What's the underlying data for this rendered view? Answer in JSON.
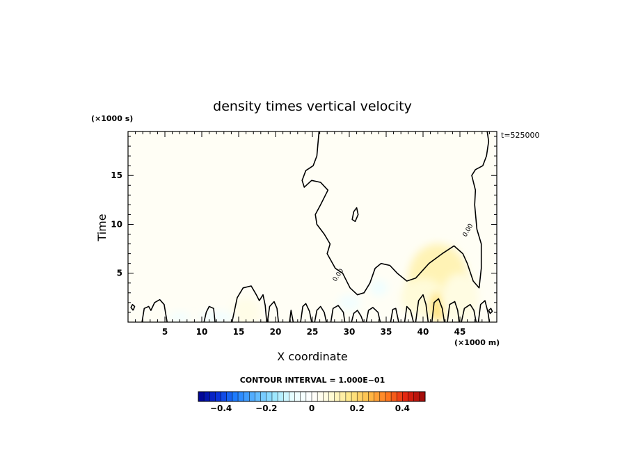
{
  "chart_data": {
    "type": "heatmap",
    "title": "density times vertical velocity",
    "xlabel": "X coordinate",
    "ylabel": "Time",
    "x_unit": "(×1000 m)",
    "y_unit": "(×1000 s)",
    "time_stamp": "t=525000",
    "xlim": [
      0,
      50
    ],
    "ylim": [
      0,
      19.5
    ],
    "x_ticks": [
      5,
      10,
      15,
      20,
      25,
      30,
      35,
      40,
      45
    ],
    "y_ticks": [
      5,
      10,
      15
    ],
    "background_value": 0.02,
    "positive_regions": [
      {
        "x": 42,
        "y": 4.5,
        "rx": 4,
        "ry": 3.5,
        "value": 0.12
      },
      {
        "x": 40,
        "y": 2.5,
        "rx": 3,
        "ry": 2,
        "value": 0.08
      },
      {
        "x": 42,
        "y": 1.5,
        "rx": 1,
        "ry": 1.5,
        "value": 0.18
      },
      {
        "x": 45,
        "y": 2.5,
        "rx": 2.5,
        "ry": 2.5,
        "value": 0.06
      },
      {
        "x": 16,
        "y": 1.0,
        "rx": 2,
        "ry": 1.5,
        "value": 0.05
      }
    ],
    "negative_regions": [
      {
        "x": 34,
        "y": 3.5,
        "rx": 1.2,
        "ry": 0.8,
        "value": -0.06
      },
      {
        "x": 7,
        "y": 0.5,
        "rx": 1.5,
        "ry": 0.5,
        "value": -0.05
      },
      {
        "x": 12,
        "y": 0.5,
        "rx": 2.5,
        "ry": 0.6,
        "value": -0.05
      },
      {
        "x": 30,
        "y": 2.0,
        "rx": 1.5,
        "ry": 0.8,
        "value": -0.05
      }
    ],
    "contour_lines": [
      {
        "level": 0,
        "points": [
          [
            0.7,
            1.2
          ],
          [
            0.9,
            1.6
          ],
          [
            0.6,
            1.8
          ],
          [
            0.4,
            1.5
          ],
          [
            0.7,
            1.2
          ]
        ]
      },
      {
        "level": 0,
        "points": [
          [
            1.9,
            0
          ],
          [
            2.2,
            1.4
          ],
          [
            2.8,
            1.6
          ],
          [
            3.1,
            1.2
          ],
          [
            3.6,
            2.0
          ],
          [
            4.3,
            2.3
          ],
          [
            4.9,
            1.8
          ],
          [
            5.3,
            0
          ]
        ]
      },
      {
        "level": 0,
        "points": [
          [
            10.3,
            0
          ],
          [
            10.6,
            1.0
          ],
          [
            11.0,
            1.6
          ],
          [
            11.6,
            1.4
          ],
          [
            11.8,
            0
          ]
        ]
      },
      {
        "level": 0,
        "points": [
          [
            14.1,
            0
          ],
          [
            14.8,
            2.5
          ],
          [
            15.6,
            3.5
          ],
          [
            16.7,
            3.7
          ],
          [
            17.4,
            2.8
          ],
          [
            17.8,
            2.2
          ],
          [
            18.3,
            2.8
          ],
          [
            18.6,
            1.7
          ],
          [
            18.8,
            0
          ]
        ]
      },
      {
        "level": 0,
        "points": [
          [
            18.9,
            0
          ],
          [
            19.2,
            1.6
          ],
          [
            19.8,
            2.1
          ],
          [
            20.2,
            1.4
          ],
          [
            20.4,
            0
          ]
        ]
      },
      {
        "level": 0,
        "points": [
          [
            21.9,
            0
          ],
          [
            22.1,
            1.2
          ],
          [
            22.4,
            0
          ]
        ]
      },
      {
        "level": 0,
        "points": [
          [
            23.4,
            0
          ],
          [
            23.7,
            1.6
          ],
          [
            24.1,
            1.9
          ],
          [
            24.6,
            1.1
          ],
          [
            24.9,
            0
          ]
        ]
      },
      {
        "level": 0,
        "points": [
          [
            25.3,
            0
          ],
          [
            25.6,
            1.2
          ],
          [
            26.1,
            1.6
          ],
          [
            26.6,
            1.0
          ],
          [
            26.9,
            0
          ]
        ]
      },
      {
        "level": 0,
        "points": [
          [
            27.5,
            0
          ],
          [
            27.8,
            1.4
          ],
          [
            28.5,
            1.7
          ],
          [
            29.2,
            1.0
          ],
          [
            29.4,
            0
          ]
        ]
      },
      {
        "level": 0,
        "points": [
          [
            30.3,
            0
          ],
          [
            30.6,
            0.9
          ],
          [
            31.1,
            1.2
          ],
          [
            31.6,
            0.6
          ],
          [
            31.9,
            0
          ]
        ]
      },
      {
        "level": 0,
        "points": [
          [
            32.3,
            0
          ],
          [
            32.6,
            1.2
          ],
          [
            33.2,
            1.5
          ],
          [
            33.9,
            1.0
          ],
          [
            34.2,
            0
          ]
        ]
      },
      {
        "level": 0,
        "points": [
          [
            35.6,
            0
          ],
          [
            35.9,
            1.3
          ],
          [
            36.3,
            1.4
          ],
          [
            36.7,
            0
          ]
        ]
      },
      {
        "level": 0,
        "points": [
          [
            37.5,
            0
          ],
          [
            37.8,
            1.6
          ],
          [
            38.3,
            1.2
          ],
          [
            38.7,
            0
          ]
        ]
      },
      {
        "level": 0,
        "points": [
          [
            39.0,
            0
          ],
          [
            39.4,
            2.2
          ],
          [
            40.0,
            2.8
          ],
          [
            40.4,
            1.8
          ],
          [
            40.7,
            0
          ]
        ]
      },
      {
        "level": 0,
        "points": [
          [
            41.2,
            0
          ],
          [
            41.5,
            2.0
          ],
          [
            42.1,
            2.4
          ],
          [
            42.6,
            1.4
          ],
          [
            42.9,
            0
          ]
        ]
      },
      {
        "level": 0,
        "points": [
          [
            43.3,
            0
          ],
          [
            43.6,
            1.8
          ],
          [
            44.3,
            2.1
          ],
          [
            44.7,
            1.2
          ],
          [
            44.9,
            0
          ]
        ]
      },
      {
        "level": 0,
        "points": [
          [
            45.2,
            0
          ],
          [
            45.6,
            1.4
          ],
          [
            46.4,
            1.8
          ],
          [
            46.9,
            1.2
          ],
          [
            47.2,
            0
          ]
        ]
      },
      {
        "level": 0,
        "points": [
          [
            47.5,
            0
          ],
          [
            47.8,
            1.8
          ],
          [
            48.4,
            2.2
          ],
          [
            48.8,
            1.0
          ],
          [
            49.0,
            0
          ]
        ]
      },
      {
        "level": 0,
        "points": [
          [
            48.9,
            1.2
          ],
          [
            49.2,
            1.4
          ],
          [
            49.4,
            1.1
          ],
          [
            49.1,
            0.9
          ],
          [
            48.9,
            1.2
          ]
        ]
      },
      {
        "level": 0,
        "points": [
          [
            25.9,
            19.5
          ],
          [
            25.6,
            17.0
          ],
          [
            25.1,
            16.0
          ],
          [
            24.1,
            15.5
          ],
          [
            23.6,
            14.5
          ],
          [
            23.9,
            13.8
          ],
          [
            24.9,
            14.5
          ],
          [
            26.1,
            14.3
          ],
          [
            27.1,
            13.5
          ],
          [
            26.1,
            12.0
          ],
          [
            25.4,
            11.0
          ],
          [
            25.6,
            10.0
          ],
          [
            26.6,
            9.0
          ],
          [
            27.4,
            8.0
          ],
          [
            27.0,
            7.0
          ],
          [
            28.1,
            5.5
          ],
          [
            29.1,
            5.0
          ],
          [
            30.1,
            3.5
          ],
          [
            31.1,
            2.8
          ],
          [
            32.0,
            3.0
          ],
          [
            32.8,
            4.0
          ],
          [
            33.5,
            5.5
          ],
          [
            34.3,
            6.0
          ],
          [
            35.5,
            5.8
          ],
          [
            36.5,
            5.0
          ],
          [
            37.8,
            4.2
          ],
          [
            39.0,
            4.5
          ],
          [
            40.8,
            6.0
          ],
          [
            42.6,
            7.0
          ],
          [
            44.2,
            7.8
          ],
          [
            45.4,
            7.0
          ],
          [
            46.0,
            6.0
          ],
          [
            46.8,
            4.2
          ],
          [
            47.6,
            3.5
          ],
          [
            47.9,
            5.5
          ],
          [
            47.9,
            8.0
          ],
          [
            47.3,
            9.5
          ],
          [
            47.0,
            12.0
          ],
          [
            47.1,
            13.5
          ],
          [
            46.6,
            15.0
          ],
          [
            47.1,
            15.6
          ],
          [
            48.1,
            16.0
          ],
          [
            48.6,
            17.0
          ],
          [
            48.9,
            18.5
          ],
          [
            48.7,
            19.5
          ]
        ]
      },
      {
        "level": 0,
        "points": [
          [
            30.6,
            11.3
          ],
          [
            31.0,
            11.7
          ],
          [
            31.2,
            11.0
          ],
          [
            30.8,
            10.3
          ],
          [
            30.4,
            10.5
          ],
          [
            30.6,
            11.3
          ]
        ]
      }
    ],
    "contour_labels": [
      {
        "x": 28.7,
        "y": 4.7,
        "text": "0.00",
        "angle": -55
      },
      {
        "x": 46.3,
        "y": 9.3,
        "text": "0.00",
        "angle": -60
      }
    ]
  },
  "colorbar": {
    "title": "CONTOUR INTERVAL = 1.000E−01",
    "range": [
      -0.5,
      0.5
    ],
    "bins": 40,
    "tick_values": [
      -0.4,
      -0.2,
      0,
      0.2,
      0.4
    ],
    "tick_labels": [
      "−0.4",
      "−0.2",
      "0",
      "0.2",
      "0.4"
    ],
    "color_stops": [
      "#00008b",
      "#0a2fd8",
      "#1e7fff",
      "#5ab4ff",
      "#9ae7ff",
      "#e9feff",
      "#ffffff",
      "#fffbd7",
      "#ffe98a",
      "#ffc04a",
      "#ff7a1f",
      "#e3230f",
      "#9a0a0a"
    ]
  }
}
